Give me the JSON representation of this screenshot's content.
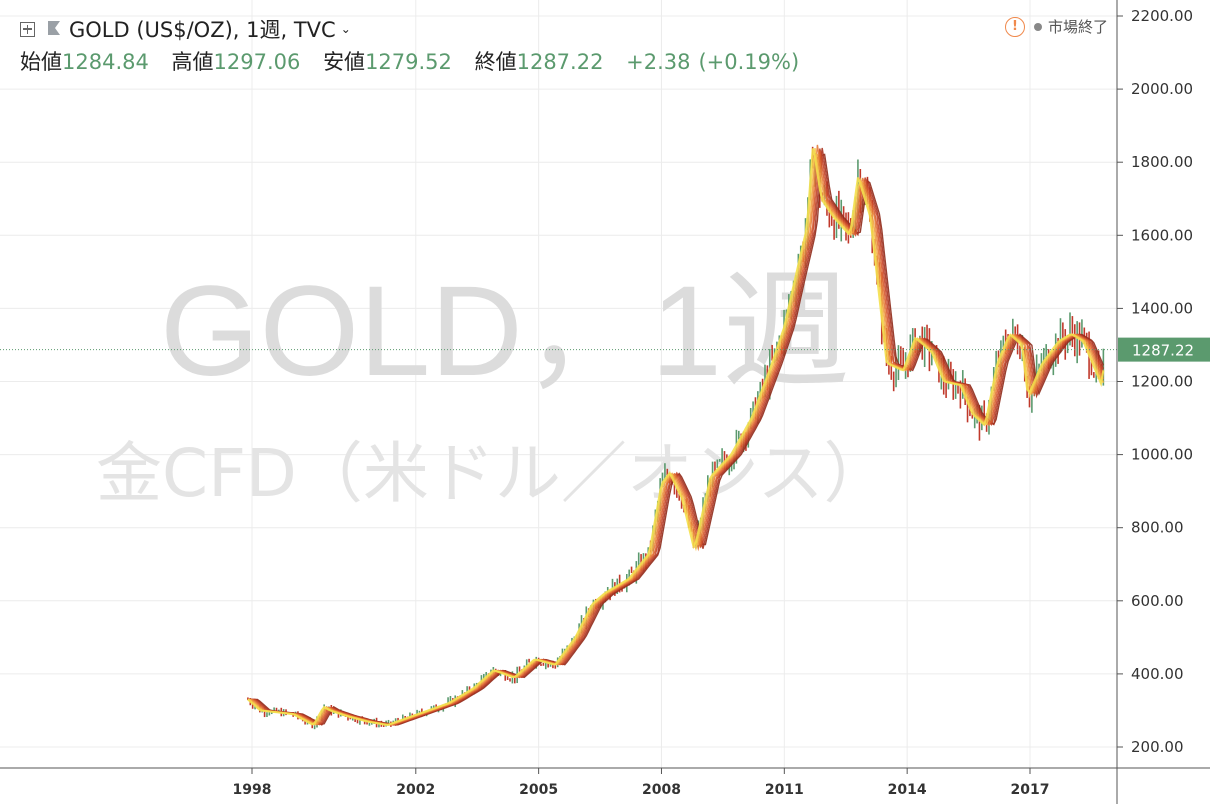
{
  "header": {
    "symbol_title": "GOLD (US$/OZ), 1週, TVC",
    "market_status": "市場終了",
    "ohlc": {
      "open_label": "始値",
      "open": "1284.84",
      "high_label": "高値",
      "high": "1297.06",
      "low_label": "安値",
      "low": "1279.52",
      "close_label": "終値",
      "close": "1287.22",
      "change": "+2.38",
      "change_pct": "(+0.19%)"
    }
  },
  "watermark": {
    "line1": "GOLD，1週",
    "line2": "金CFD（米ドル／オンス）"
  },
  "colors": {
    "up": "#5b9a6e",
    "down": "#c0392b",
    "price_tag": "#5b9a6e",
    "alert": "#f0894c",
    "ma_light": "#f4e04d",
    "ma_dark": "#b83a25"
  },
  "chart_data": {
    "type": "line",
    "title": "GOLD (US$/OZ), 1週, TVC",
    "xlabel": "",
    "ylabel": "",
    "ylim": [
      150,
      2200
    ],
    "yticks": [
      "2200.00",
      "2000.00",
      "1800.00",
      "1600.00",
      "1400.00",
      "1200.00",
      "1000.00",
      "800.00",
      "600.00",
      "400.00",
      "200.00"
    ],
    "ytick_values": [
      2200,
      2000,
      1800,
      1600,
      1400,
      1200,
      1000,
      800,
      600,
      400,
      200
    ],
    "xticks": [
      "1998",
      "2002",
      "2005",
      "2008",
      "2011",
      "2014",
      "2017"
    ],
    "xtick_values": [
      1998,
      2002,
      2005,
      2008,
      2011,
      2014,
      2017
    ],
    "xlim": [
      1991.9,
      2018.9
    ],
    "last_price": 1287.22,
    "last_price_label": "1287.22",
    "grid": true,
    "series": [
      {
        "style": "weekly-bars",
        "x": [
          1997.9,
          1998.2,
          1998.6,
          1999.0,
          1999.5,
          1999.75,
          1999.9,
          2000.3,
          2000.8,
          2001.3,
          2001.8,
          2002.3,
          2002.8,
          2003.4,
          2003.9,
          2004.4,
          2004.9,
          2005.4,
          2005.9,
          2006.3,
          2006.6,
          2007.2,
          2007.7,
          2008.0,
          2008.2,
          2008.5,
          2008.8,
          2009.2,
          2009.7,
          2010.2,
          2010.7,
          2011.0,
          2011.3,
          2011.55,
          2011.7,
          2011.9,
          2012.2,
          2012.6,
          2012.8,
          2013.1,
          2013.3,
          2013.5,
          2013.9,
          2014.2,
          2014.6,
          2014.9,
          2015.3,
          2015.6,
          2015.9,
          2016.2,
          2016.5,
          2016.8,
          2016.95,
          2017.3,
          2017.7,
          2018.0,
          2018.3,
          2018.6,
          2018.75,
          2018.85
        ],
        "values": [
          330,
          300,
          295,
          290,
          260,
          310,
          300,
          285,
          270,
          260,
          280,
          300,
          320,
          360,
          410,
          390,
          440,
          425,
          500,
          590,
          620,
          660,
          730,
          920,
          950,
          880,
          740,
          940,
          1000,
          1100,
          1250,
          1350,
          1500,
          1620,
          1850,
          1700,
          1650,
          1600,
          1760,
          1650,
          1450,
          1250,
          1230,
          1320,
          1280,
          1200,
          1190,
          1110,
          1080,
          1250,
          1330,
          1300,
          1160,
          1250,
          1310,
          1330,
          1310,
          1230,
          1190,
          1287
        ]
      }
    ]
  }
}
